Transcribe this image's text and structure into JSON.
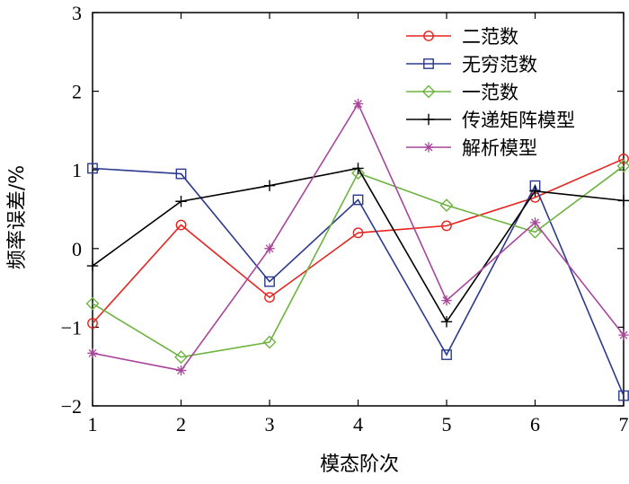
{
  "chart_data": {
    "type": "line",
    "xlabel": "模态阶次",
    "ylabel": "频率误差/%",
    "xlim": [
      1,
      7
    ],
    "ylim": [
      -2,
      3
    ],
    "x": [
      1,
      2,
      3,
      4,
      5,
      6,
      7
    ],
    "xticks": [
      "1",
      "2",
      "3",
      "4",
      "5",
      "6",
      "7"
    ],
    "yticks": [
      "−2",
      "−1",
      "0",
      "1",
      "2",
      "3"
    ],
    "ytick_values": [
      -2,
      -1,
      0,
      1,
      2,
      3
    ],
    "grid": false,
    "legend_position": "top-right",
    "series": [
      {
        "name": "二范数",
        "color": "#e8231f",
        "marker": "circle",
        "values": [
          -0.95,
          0.3,
          -0.62,
          0.2,
          0.29,
          0.65,
          1.14
        ]
      },
      {
        "name": "无穷范数",
        "color": "#2b3a8f",
        "marker": "square",
        "values": [
          1.02,
          0.95,
          -0.42,
          0.62,
          -1.35,
          0.8,
          -1.87
        ]
      },
      {
        "name": "一范数",
        "color": "#6db33f",
        "marker": "diamond",
        "values": [
          -0.7,
          -1.38,
          -1.19,
          0.96,
          0.55,
          0.21,
          1.05
        ]
      },
      {
        "name": "传递矩阵模型",
        "color": "#000000",
        "marker": "plus",
        "values": [
          -0.22,
          0.6,
          0.8,
          1.02,
          -0.93,
          0.73,
          0.61
        ]
      },
      {
        "name": "解析模型",
        "color": "#a8459b",
        "marker": "asterisk",
        "values": [
          -1.33,
          -1.55,
          0.0,
          1.84,
          -0.66,
          0.33,
          -1.1
        ]
      }
    ]
  }
}
